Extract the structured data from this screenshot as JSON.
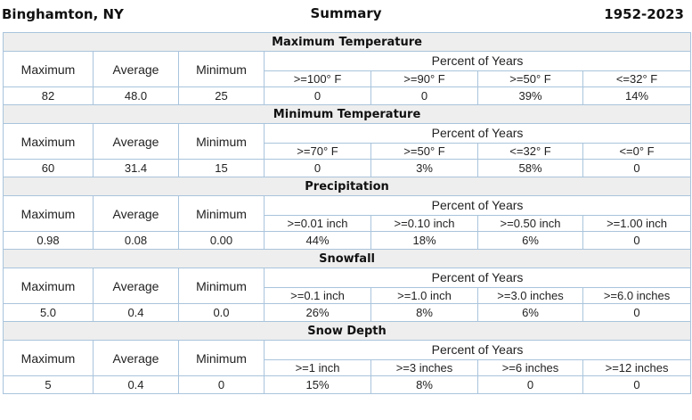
{
  "header": {
    "location": "Binghamton, NY",
    "title": "Summary",
    "years": "1952-2023"
  },
  "stat_labels": {
    "maximum": "Maximum",
    "average": "Average",
    "minimum": "Minimum",
    "percent_of_years": "Percent of Years"
  },
  "sections": [
    {
      "title": "Maximum Temperature",
      "thresholds": [
        ">=100° F",
        ">=90° F",
        ">=50° F",
        "<=32° F"
      ],
      "values": {
        "maximum": "82",
        "average": "48.0",
        "minimum": "25",
        "percents": [
          "0",
          "0",
          "39%",
          "14%"
        ]
      }
    },
    {
      "title": "Minimum Temperature",
      "thresholds": [
        ">=70° F",
        ">=50° F",
        "<=32° F",
        "<=0° F"
      ],
      "values": {
        "maximum": "60",
        "average": "31.4",
        "minimum": "15",
        "percents": [
          "0",
          "3%",
          "58%",
          "0"
        ]
      }
    },
    {
      "title": "Precipitation",
      "thresholds": [
        ">=0.01 inch",
        ">=0.10 inch",
        ">=0.50 inch",
        ">=1.00 inch"
      ],
      "values": {
        "maximum": "0.98",
        "average": "0.08",
        "minimum": "0.00",
        "percents": [
          "44%",
          "18%",
          "6%",
          "0"
        ]
      }
    },
    {
      "title": "Snowfall",
      "thresholds": [
        ">=0.1 inch",
        ">=1.0 inch",
        ">=3.0 inches",
        ">=6.0 inches"
      ],
      "values": {
        "maximum": "5.0",
        "average": "0.4",
        "minimum": "0.0",
        "percents": [
          "26%",
          "8%",
          "6%",
          "0"
        ]
      }
    },
    {
      "title": "Snow Depth",
      "thresholds": [
        ">=1 inch",
        ">=3 inches",
        ">=6 inches",
        ">=12 inches"
      ],
      "values": {
        "maximum": "5",
        "average": "0.4",
        "minimum": "0",
        "percents": [
          "15%",
          "8%",
          "0",
          "0"
        ]
      }
    }
  ]
}
